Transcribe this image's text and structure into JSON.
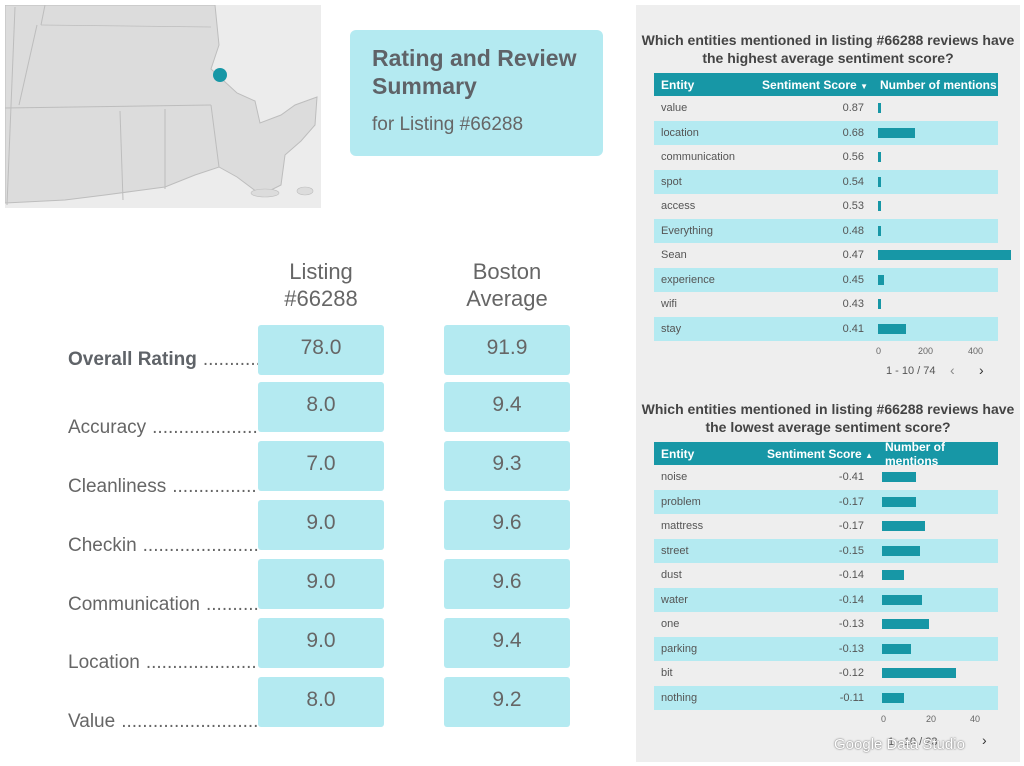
{
  "summary": {
    "title": "Rating and Review Summary",
    "subtitle": "for Listing #66288"
  },
  "columns": {
    "listing": "Listing\n#66288",
    "boston": "Boston\nAverage"
  },
  "ratings": [
    {
      "label": "Overall Rating",
      "listing": "78.0",
      "boston": "91.9"
    },
    {
      "label": "Accuracy",
      "listing": "8.0",
      "boston": "9.4"
    },
    {
      "label": "Cleanliness",
      "listing": "7.0",
      "boston": "9.3"
    },
    {
      "label": "Checkin",
      "listing": "9.0",
      "boston": "9.6"
    },
    {
      "label": "Communication",
      "listing": "9.0",
      "boston": "9.6"
    },
    {
      "label": "Location",
      "listing": "9.0",
      "boston": "9.4"
    },
    {
      "label": "Value",
      "listing": "8.0",
      "boston": "9.2"
    }
  ],
  "top_table": {
    "title": "Which entities mentioned in listing #66288 reviews have the highest average sentiment score?",
    "headers": {
      "entity": "Entity",
      "score": "Sentiment Score",
      "mentions": "Number of mentions"
    },
    "sort_icon": "sort-desc-icon",
    "rows": [
      {
        "entity": "value",
        "score": "0.87",
        "mentions": 10
      },
      {
        "entity": "location",
        "score": "0.68",
        "mentions": 130
      },
      {
        "entity": "communication",
        "score": "0.56",
        "mentions": 10
      },
      {
        "entity": "spot",
        "score": "0.54",
        "mentions": 8
      },
      {
        "entity": "access",
        "score": "0.53",
        "mentions": 12
      },
      {
        "entity": "Everything",
        "score": "0.48",
        "mentions": 9
      },
      {
        "entity": "Sean",
        "score": "0.47",
        "mentions": 470
      },
      {
        "entity": "experience",
        "score": "0.45",
        "mentions": 20
      },
      {
        "entity": "wifi",
        "score": "0.43",
        "mentions": 8
      },
      {
        "entity": "stay",
        "score": "0.41",
        "mentions": 100
      }
    ],
    "axis_ticks": [
      "0",
      "200",
      "400"
    ],
    "axis_max": 480,
    "pager": "1 - 10 / 74"
  },
  "bottom_table": {
    "title": "Which entities mentioned in listing #66288 reviews have the lowest average sentiment score?",
    "headers": {
      "entity": "Entity",
      "score": "Sentiment Score",
      "mentions": "Number of mentions"
    },
    "sort_icon": "sort-asc-icon",
    "rows": [
      {
        "entity": "noise",
        "score": "-0.41",
        "mentions": 15
      },
      {
        "entity": "problem",
        "score": "-0.17",
        "mentions": 15
      },
      {
        "entity": "mattress",
        "score": "-0.17",
        "mentions": 19
      },
      {
        "entity": "street",
        "score": "-0.15",
        "mentions": 17
      },
      {
        "entity": "dust",
        "score": "-0.14",
        "mentions": 10
      },
      {
        "entity": "water",
        "score": "-0.14",
        "mentions": 18
      },
      {
        "entity": "one",
        "score": "-0.13",
        "mentions": 21
      },
      {
        "entity": "parking",
        "score": "-0.13",
        "mentions": 13
      },
      {
        "entity": "bit",
        "score": "-0.12",
        "mentions": 33
      },
      {
        "entity": "nothing",
        "score": "-0.11",
        "mentions": 10
      }
    ],
    "axis_ticks": [
      "0",
      "20",
      "40"
    ],
    "axis_max": 50,
    "pager": "1 - 10 / 23"
  },
  "watermark": "Google Data Studio",
  "colors": {
    "accent": "#1797a6",
    "card": "#b4eaf1",
    "panel": "#eeeeee"
  }
}
